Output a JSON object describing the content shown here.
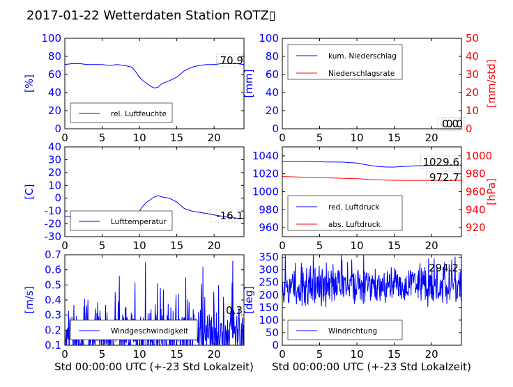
{
  "title": "2017-01-22 Wetterdaten Station ROTZ▯",
  "xlabel": "Std 00:00:00 UTC (+-23 Std Lokalzeit)",
  "colors": {
    "blue": "#0000ff",
    "red": "#ff0000",
    "axis": "#000000"
  },
  "chart_data": [
    {
      "id": "humidity",
      "type": "line",
      "ylabel": "[%]",
      "ylim": [
        0,
        100
      ],
      "yticks": [
        0,
        20,
        40,
        60,
        80,
        100
      ],
      "xlim": [
        0,
        24
      ],
      "xticks": [
        0,
        5,
        10,
        15,
        20
      ],
      "value_label": "70.9",
      "legend": {
        "placement": "bottom-left",
        "entries": [
          {
            "name": "rel. Luftfeuchte",
            "color": "#0000ff"
          }
        ]
      },
      "series": [
        {
          "name": "rel. Luftfeuchte",
          "color": "#0000ff",
          "x": [
            0,
            1,
            2,
            3,
            4,
            5,
            6,
            7,
            8,
            9,
            9.5,
            10,
            10.5,
            11,
            11.5,
            12,
            12.5,
            13,
            14,
            15,
            16,
            17,
            18,
            19,
            20,
            21,
            22,
            23,
            24
          ],
          "y": [
            71,
            72,
            72,
            71,
            71,
            71,
            70,
            71,
            70,
            68,
            63,
            57,
            53,
            50,
            47,
            45,
            46,
            50,
            53,
            57,
            64,
            68,
            70,
            71,
            71,
            72,
            72,
            72,
            71
          ]
        }
      ]
    },
    {
      "id": "precip",
      "type": "line",
      "ylabel": "[mm]",
      "ylim": [
        0,
        100
      ],
      "yticks": [
        0,
        20,
        40,
        60,
        80,
        100
      ],
      "ylabel_right": "[mm/std]",
      "ylim_right": [
        0,
        50
      ],
      "yticks_right": [
        0,
        10,
        20,
        30,
        40,
        50
      ],
      "xlim": [
        0,
        24
      ],
      "xticks": [
        0,
        5,
        10,
        15,
        20
      ],
      "value_label": "0.0",
      "value_label_right": "0.0",
      "legend": {
        "placement": "top-left",
        "entries": [
          {
            "name": "kum. Niederschlag",
            "color": "#0000ff"
          },
          {
            "name": "Niederschlagsrate",
            "color": "#ff0000"
          }
        ]
      },
      "series": [
        {
          "name": "kum. Niederschlag",
          "axis": "left",
          "color": "#0000ff",
          "x": [
            0,
            24
          ],
          "y": [
            0,
            0
          ]
        },
        {
          "name": "Niederschlagsrate",
          "axis": "right",
          "color": "#ff0000",
          "x": [
            0,
            24
          ],
          "y": [
            0,
            0
          ]
        }
      ]
    },
    {
      "id": "temperature",
      "type": "line",
      "ylabel": "[C]",
      "ylim": [
        -30,
        40
      ],
      "yticks": [
        -30,
        -20,
        -10,
        0,
        10,
        20,
        30,
        40
      ],
      "xlim": [
        0,
        24
      ],
      "xticks": [
        0,
        5,
        10,
        15,
        20
      ],
      "value_label": "-16.1",
      "legend": {
        "placement": "bottom-left",
        "entries": [
          {
            "name": "Lufttemperatur",
            "color": "#0000ff"
          }
        ]
      },
      "series": [
        {
          "name": "Lufttemperatur",
          "color": "#0000ff",
          "x": [
            0,
            1,
            2,
            3,
            4,
            5,
            6,
            7,
            8,
            9,
            10,
            10.5,
            11,
            11.5,
            12,
            12.5,
            13,
            14,
            15,
            16,
            17,
            18,
            19,
            20,
            21,
            22,
            23,
            24
          ],
          "y": [
            -14,
            -14.5,
            -15,
            -15.5,
            -16,
            -16,
            -15.5,
            -16,
            -16,
            -14,
            -10,
            -6,
            -3,
            -1,
            1,
            2,
            1,
            0,
            -3,
            -8,
            -10,
            -11,
            -12,
            -13,
            -14,
            -15,
            -15.5,
            -16
          ]
        }
      ]
    },
    {
      "id": "pressure",
      "type": "line",
      "ylabel": "",
      "ylim": [
        950,
        1050
      ],
      "yticks": [
        960,
        980,
        1000,
        1020,
        1040
      ],
      "ylabel_right": "[hPa]",
      "ylim_right": [
        910,
        1010
      ],
      "yticks_right": [
        920,
        940,
        960,
        980,
        1000
      ],
      "xlim": [
        0,
        24
      ],
      "xticks": [
        0,
        5,
        10,
        15,
        20
      ],
      "value_label": "1029.6",
      "value_label_right": "972.7",
      "legend": {
        "placement": "bottom-left",
        "entries": [
          {
            "name": "red. Luftdruck",
            "color": "#0000ff"
          },
          {
            "name": "abs. Luftdruck",
            "color": "#ff0000"
          }
        ]
      },
      "series": [
        {
          "name": "red. Luftdruck",
          "axis": "left",
          "color": "#0000ff",
          "x": [
            0,
            2,
            4,
            6,
            8,
            9,
            10,
            11,
            12,
            13,
            14,
            15,
            16,
            17,
            18,
            19,
            20,
            22,
            24
          ],
          "y": [
            1034,
            1033.8,
            1033.5,
            1033.2,
            1033,
            1032.5,
            1032,
            1030.5,
            1029,
            1028,
            1027.5,
            1027.5,
            1028,
            1028.5,
            1029,
            1029,
            1029.5,
            1029.5,
            1029.6
          ]
        },
        {
          "name": "abs. Luftdruck",
          "axis": "right",
          "color": "#ff0000",
          "x": [
            0,
            2,
            4,
            6,
            8,
            10,
            11,
            12,
            13,
            14,
            15,
            16,
            18,
            20,
            22,
            24
          ],
          "y": [
            977,
            976.5,
            976,
            975.5,
            975,
            974.5,
            974,
            973.5,
            973.2,
            973,
            972.8,
            972.7,
            972.7,
            972.7,
            972.7,
            972.7
          ]
        }
      ]
    },
    {
      "id": "wind-speed",
      "type": "line",
      "ylabel": "[m/s]",
      "ylim": [
        0.1,
        0.7
      ],
      "yticks": [
        0.1,
        0.2,
        0.3,
        0.4,
        0.5,
        0.6,
        0.7
      ],
      "xlim": [
        0,
        24
      ],
      "xticks": [
        0,
        5,
        10,
        15,
        20
      ],
      "value_label": "0.3",
      "legend": {
        "placement": "bottom-left",
        "entries": [
          {
            "name": "Windgeschwindigkeit",
            "color": "#0000ff"
          }
        ]
      },
      "series": [
        {
          "name": "Windgeschwindigkeit",
          "color": "#0000ff",
          "noise": {
            "seed": 7,
            "step": 0.05,
            "min": 0.1,
            "base": 0.17,
            "spread": 0.22,
            "peaks": [
              [
                10.8,
                0.65
              ],
              [
                22.5,
                0.66
              ],
              [
                18.5,
                0.62
              ],
              [
                7.3,
                0.56
              ],
              [
                16.2,
                0.55
              ]
            ]
          }
        }
      ]
    },
    {
      "id": "wind-direction",
      "type": "line",
      "ylabel": "[deg]",
      "ylim": [
        0,
        360
      ],
      "yticks": [
        0,
        50,
        100,
        150,
        200,
        250,
        300,
        350
      ],
      "xlim": [
        0,
        24
      ],
      "xticks": [
        0,
        5,
        10,
        15,
        20
      ],
      "value_label": "294.2",
      "legend": {
        "placement": "bottom-left",
        "entries": [
          {
            "name": "Windrichtung",
            "color": "#0000ff"
          }
        ]
      },
      "series": [
        {
          "name": "Windrichtung",
          "color": "#0000ff",
          "noise": {
            "seed": 13,
            "step": 0.05,
            "min": 30,
            "base": 230,
            "spread": 90,
            "peaks": []
          }
        }
      ]
    }
  ]
}
